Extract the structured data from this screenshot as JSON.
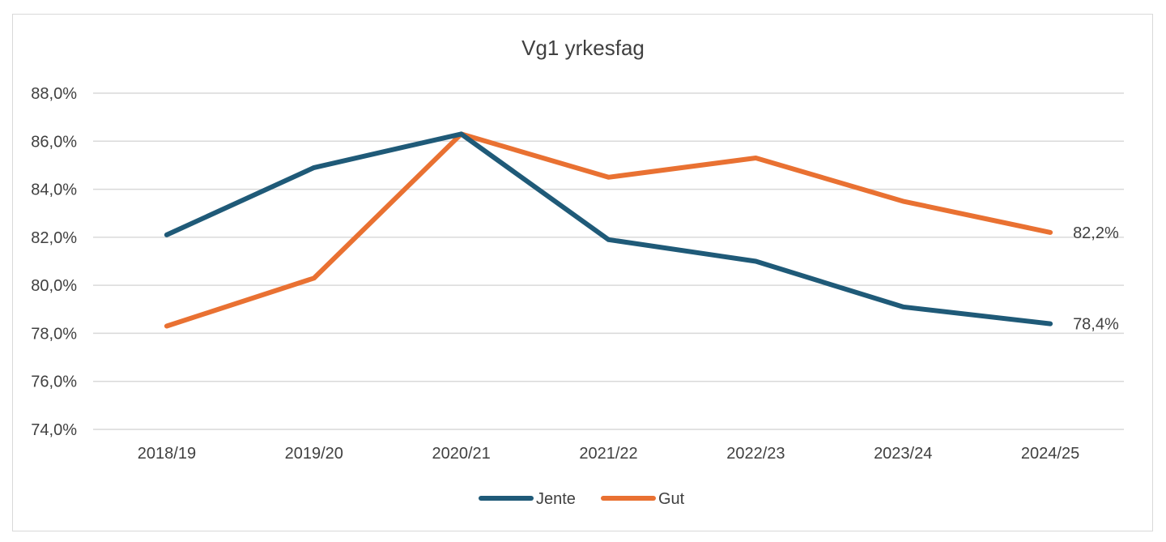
{
  "chart_data": {
    "type": "line",
    "title": "Vg1 yrkesfag",
    "xlabel": "",
    "ylabel": "",
    "categories": [
      "2018/19",
      "2019/20",
      "2020/21",
      "2021/22",
      "2022/23",
      "2023/24",
      "2024/25"
    ],
    "ylim": [
      74.0,
      88.0
    ],
    "y_ticks": [
      74.0,
      76.0,
      78.0,
      80.0,
      82.0,
      84.0,
      86.0,
      88.0
    ],
    "y_tick_labels": [
      "74,0%",
      "76,0%",
      "78,0%",
      "80,0%",
      "82,0%",
      "84,0%",
      "86,0%",
      "88,0%"
    ],
    "grid": true,
    "legend_position": "bottom",
    "series": [
      {
        "name": "Jente",
        "color": "#1f5a78",
        "values": [
          82.1,
          84.9,
          86.3,
          81.9,
          81.0,
          79.1,
          78.4
        ],
        "end_label": "78,4%"
      },
      {
        "name": "Gut",
        "color": "#e97132",
        "values": [
          78.3,
          80.3,
          86.3,
          84.5,
          85.3,
          83.5,
          82.2
        ],
        "end_label": "82,2%"
      }
    ]
  }
}
